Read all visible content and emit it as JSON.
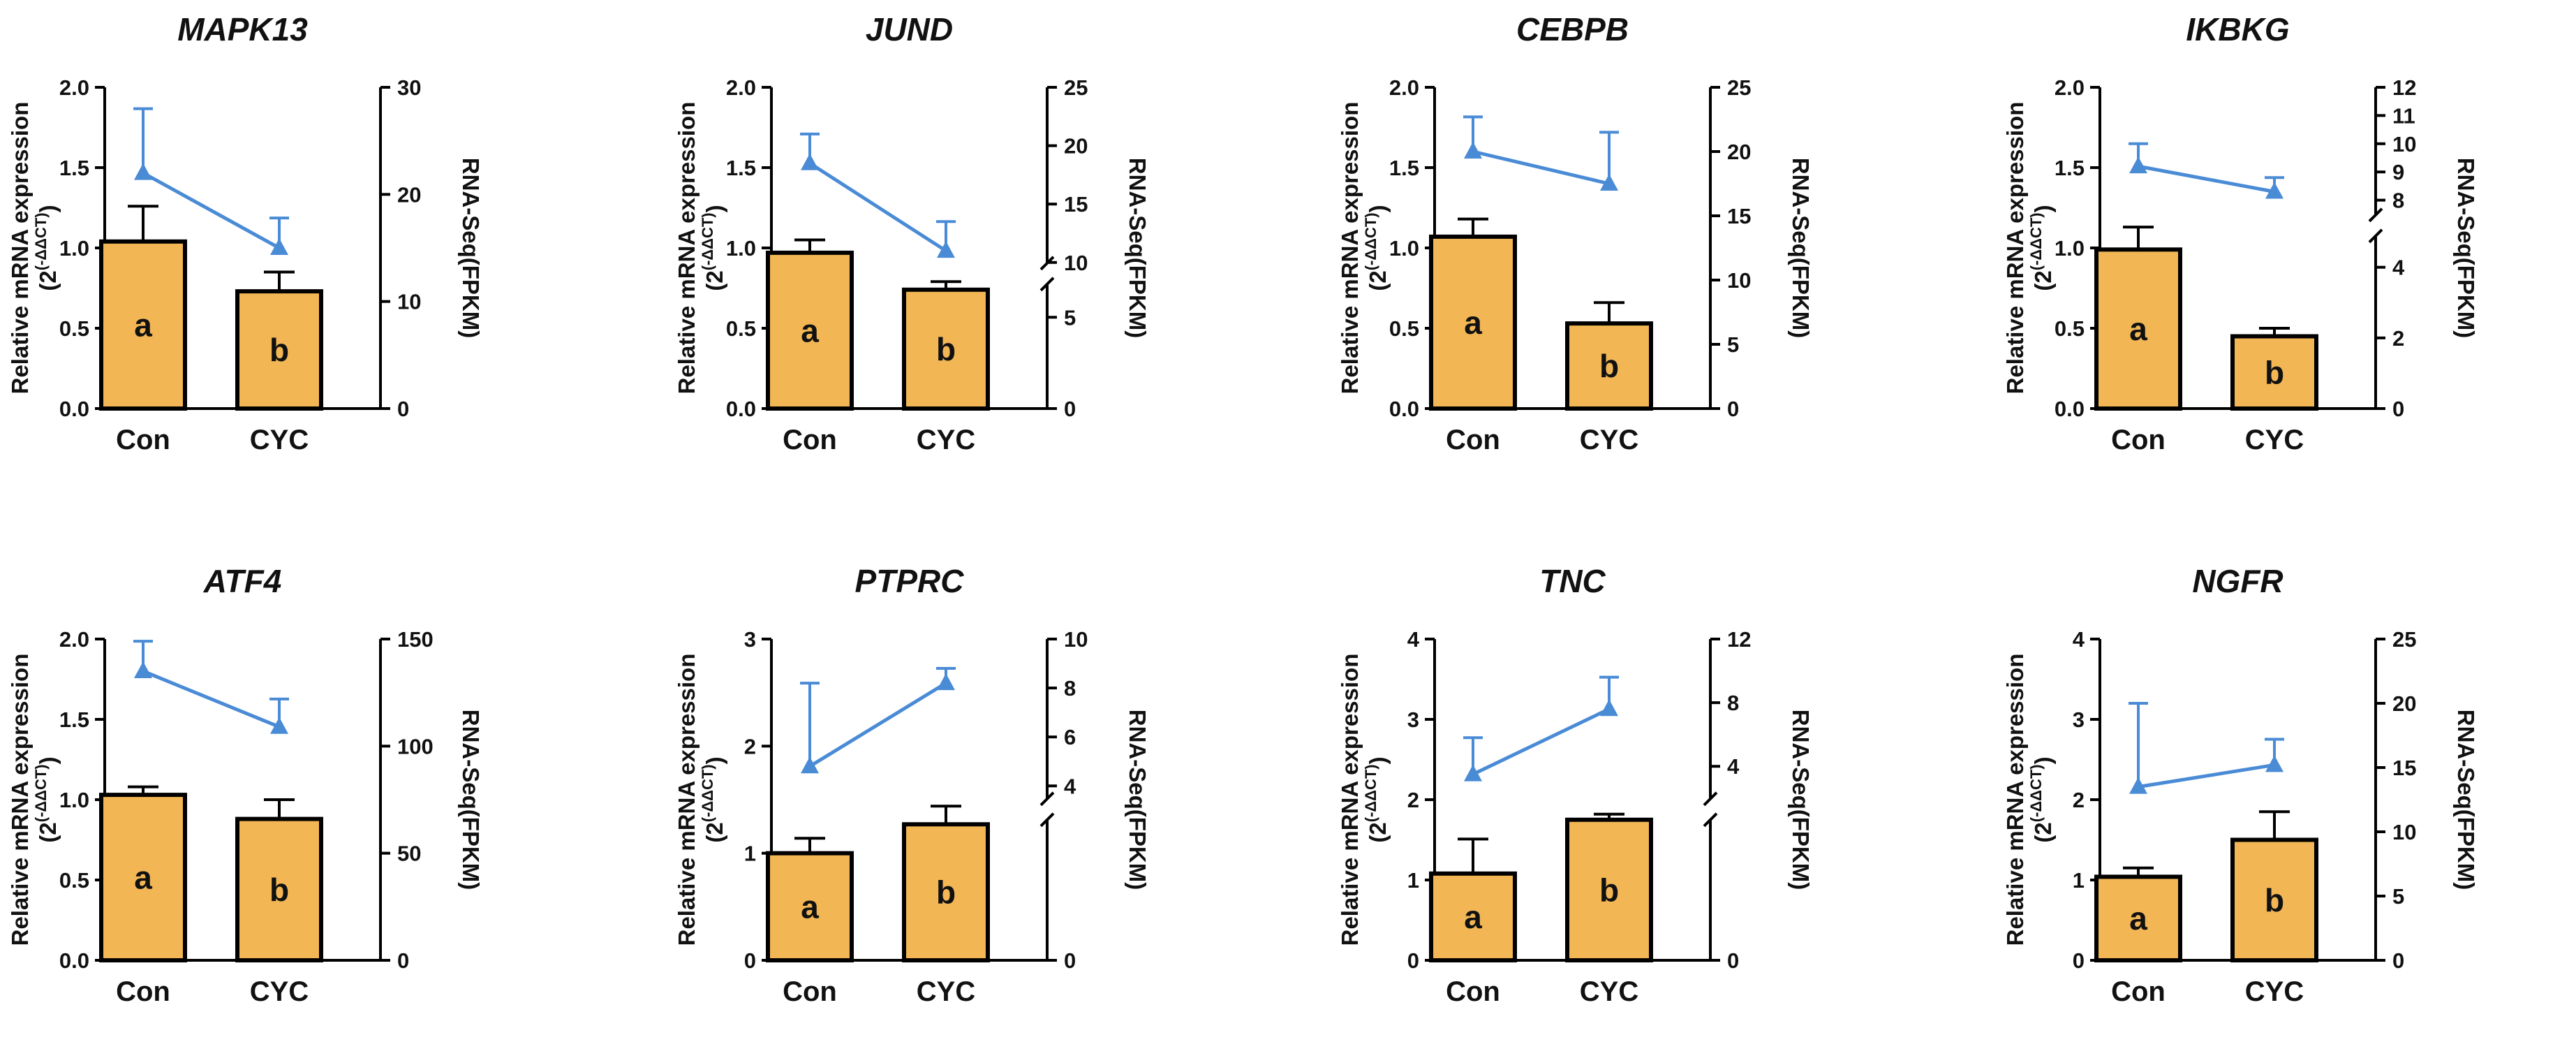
{
  "colors": {
    "bar": "#F2B655",
    "bar_edge": "#000000",
    "line": "#4A8BD6",
    "axis": "#000000"
  },
  "chart_data": [
    {
      "type": "bar+line",
      "title": "MAPK13",
      "categories": [
        "Con",
        "CYC"
      ],
      "left": {
        "label": "Relative mRNA expression",
        "label_sub": "(2(-ΔΔCT))",
        "ticks": [
          0.0,
          0.5,
          1.0,
          1.5,
          2.0
        ],
        "tick_labels": [
          "0.0",
          "0.5",
          "1.0",
          "1.5",
          "2.0"
        ],
        "ylim": [
          0,
          2.0
        ],
        "values": [
          1.04,
          0.73
        ],
        "errors": [
          0.22,
          0.12
        ],
        "letters": [
          "a",
          "b"
        ]
      },
      "right": {
        "label": "RNA-Seq(FPKM)",
        "ticks": [
          0,
          10,
          20,
          30
        ],
        "tick_labels": [
          "0",
          "10",
          "20",
          "30"
        ],
        "ylim": [
          0,
          30
        ],
        "values": [
          22.0,
          15.0
        ],
        "errors": [
          6.0,
          2.8
        ],
        "break": null
      }
    },
    {
      "type": "bar+line",
      "title": "JUND",
      "categories": [
        "Con",
        "CYC"
      ],
      "left": {
        "label": "Relative mRNA expression",
        "label_sub": "(2(-ΔΔCT))",
        "ticks": [
          0.0,
          0.5,
          1.0,
          1.5,
          2.0
        ],
        "tick_labels": [
          "0.0",
          "0.5",
          "1.0",
          "1.5",
          "2.0"
        ],
        "ylim": [
          0,
          2.0
        ],
        "values": [
          0.97,
          0.74
        ],
        "errors": [
          0.08,
          0.05
        ],
        "letters": [
          "a",
          "b"
        ]
      },
      "right": {
        "label": "RNA-Seq(FPKM)",
        "ticks": [
          0,
          5,
          10,
          15,
          20,
          25
        ],
        "tick_labels": [
          "0",
          "5",
          "10",
          "15",
          "20",
          "25"
        ],
        "ylim": [
          0,
          25
        ],
        "values": [
          18.5,
          11.0
        ],
        "errors": [
          2.5,
          2.5
        ],
        "break": {
          "low_max": 8,
          "high_min": 10,
          "split": 0.42
        }
      }
    },
    {
      "type": "bar+line",
      "title": "CEBPB",
      "categories": [
        "Con",
        "CYC"
      ],
      "left": {
        "label": "Relative mRNA expression",
        "label_sub": "(2(-ΔΔCT))",
        "ticks": [
          0.0,
          0.5,
          1.0,
          1.5,
          2.0
        ],
        "tick_labels": [
          "0.0",
          "0.5",
          "1.0",
          "1.5",
          "2.0"
        ],
        "ylim": [
          0,
          2.0
        ],
        "values": [
          1.07,
          0.53
        ],
        "errors": [
          0.11,
          0.13
        ],
        "letters": [
          "a",
          "b"
        ]
      },
      "right": {
        "label": "RNA-Seq(FPKM)",
        "ticks": [
          0,
          5,
          10,
          15,
          20,
          25
        ],
        "tick_labels": [
          "0",
          "5",
          "10",
          "15",
          "20",
          "25"
        ],
        "ylim": [
          0,
          25
        ],
        "values": [
          20.0,
          17.5
        ],
        "errors": [
          2.7,
          4.0
        ],
        "break": null
      }
    },
    {
      "type": "bar+line",
      "title": "IKBKG",
      "categories": [
        "Con",
        "CYC"
      ],
      "left": {
        "label": "Relative mRNA expression",
        "label_sub": "(2(-ΔΔCT))",
        "ticks": [
          0.0,
          0.5,
          1.0,
          1.5,
          2.0
        ],
        "tick_labels": [
          "0.0",
          "0.5",
          "1.0",
          "1.5",
          "2.0"
        ],
        "ylim": [
          0,
          2.0
        ],
        "values": [
          0.99,
          0.45
        ],
        "errors": [
          0.14,
          0.05
        ],
        "letters": [
          "a",
          "b"
        ]
      },
      "right": {
        "label": "RNA-Seq(FPKM)",
        "ticks": [
          0,
          2,
          4,
          8,
          9,
          10,
          11,
          12
        ],
        "tick_labels": [
          "0",
          "2",
          "4",
          "8",
          "9",
          "10",
          "11",
          "12"
        ],
        "ylim": [
          0,
          12
        ],
        "values": [
          9.2,
          8.3
        ],
        "errors": [
          0.8,
          0.5
        ],
        "break": {
          "low_max": 5.5,
          "high_min": 7.5,
          "split": 0.57
        }
      }
    },
    {
      "type": "bar+line",
      "title": "ATF4",
      "categories": [
        "Con",
        "CYC"
      ],
      "left": {
        "label": "Relative mRNA expression",
        "label_sub": "(2(-ΔΔCT))",
        "ticks": [
          0.0,
          0.5,
          1.0,
          1.5,
          2.0
        ],
        "tick_labels": [
          "0.0",
          "0.5",
          "1.0",
          "1.5",
          "2.0"
        ],
        "ylim": [
          0,
          2.0
        ],
        "values": [
          1.03,
          0.88
        ],
        "errors": [
          0.05,
          0.12
        ],
        "letters": [
          "a",
          "b"
        ]
      },
      "right": {
        "label": "RNA-Seq(FPKM)",
        "ticks": [
          0,
          50,
          100,
          150
        ],
        "tick_labels": [
          "0",
          "50",
          "100",
          "150"
        ],
        "ylim": [
          0,
          150
        ],
        "values": [
          135.0,
          109.0
        ],
        "errors": [
          14.0,
          13.0
        ],
        "break": null
      }
    },
    {
      "type": "bar+line",
      "title": "PTPRC",
      "categories": [
        "Con",
        "CYC"
      ],
      "left": {
        "label": "Relative mRNA expression",
        "label_sub": "(2(-ΔΔCT))",
        "ticks": [
          0,
          1,
          2,
          3
        ],
        "tick_labels": [
          "0",
          "1",
          "2",
          "3"
        ],
        "ylim": [
          0,
          3
        ],
        "values": [
          1.0,
          1.27
        ],
        "errors": [
          0.14,
          0.17
        ],
        "letters": [
          "a",
          "b"
        ]
      },
      "right": {
        "label": "RNA-Seq(FPKM)",
        "ticks": [
          0,
          4,
          6,
          8,
          10
        ],
        "tick_labels": [
          "0",
          "4",
          "6",
          "8",
          "10"
        ],
        "ylim": [
          0,
          10
        ],
        "values": [
          4.8,
          8.2
        ],
        "errors": [
          3.4,
          0.6
        ],
        "break": {
          "low_max": 3,
          "high_min": 3.5,
          "split": 0.47
        }
      }
    },
    {
      "type": "bar+line",
      "title": "TNC",
      "categories": [
        "Con",
        "CYC"
      ],
      "left": {
        "label": "Relative mRNA expression",
        "label_sub": "(2(-ΔΔCT))",
        "ticks": [
          0,
          1,
          2,
          3,
          4
        ],
        "tick_labels": [
          "0",
          "1",
          "2",
          "3",
          "4"
        ],
        "ylim": [
          0,
          4
        ],
        "values": [
          1.08,
          1.75
        ],
        "errors": [
          0.43,
          0.07
        ],
        "letters": [
          "a",
          "b"
        ]
      },
      "right": {
        "label": "RNA-Seq(FPKM)",
        "ticks": [
          0,
          4,
          8,
          12
        ],
        "tick_labels": [
          "0",
          "4",
          "8",
          "12"
        ],
        "ylim": [
          0,
          12
        ],
        "values": [
          3.5,
          7.6
        ],
        "errors": [
          2.3,
          2.0
        ],
        "break": {
          "low_max": 1.5,
          "high_min": 2.0,
          "split": 0.47
        }
      }
    },
    {
      "type": "bar+line",
      "title": "NGFR",
      "categories": [
        "Con",
        "CYC"
      ],
      "left": {
        "label": "Relative mRNA expression",
        "label_sub": "(2(-ΔΔCT))",
        "ticks": [
          0,
          1,
          2,
          3,
          4
        ],
        "tick_labels": [
          "0",
          "1",
          "2",
          "3",
          "4"
        ],
        "ylim": [
          0,
          4
        ],
        "values": [
          1.04,
          1.5
        ],
        "errors": [
          0.11,
          0.35
        ],
        "letters": [
          "a",
          "b"
        ]
      },
      "right": {
        "label": "RNA-Seq(FPKM)",
        "ticks": [
          0,
          5,
          10,
          15,
          20,
          25
        ],
        "tick_labels": [
          "0",
          "5",
          "10",
          "15",
          "20",
          "25"
        ],
        "ylim": [
          0,
          25
        ],
        "values": [
          13.5,
          15.2
        ],
        "errors": [
          6.5,
          2.0
        ],
        "break": null
      }
    }
  ]
}
